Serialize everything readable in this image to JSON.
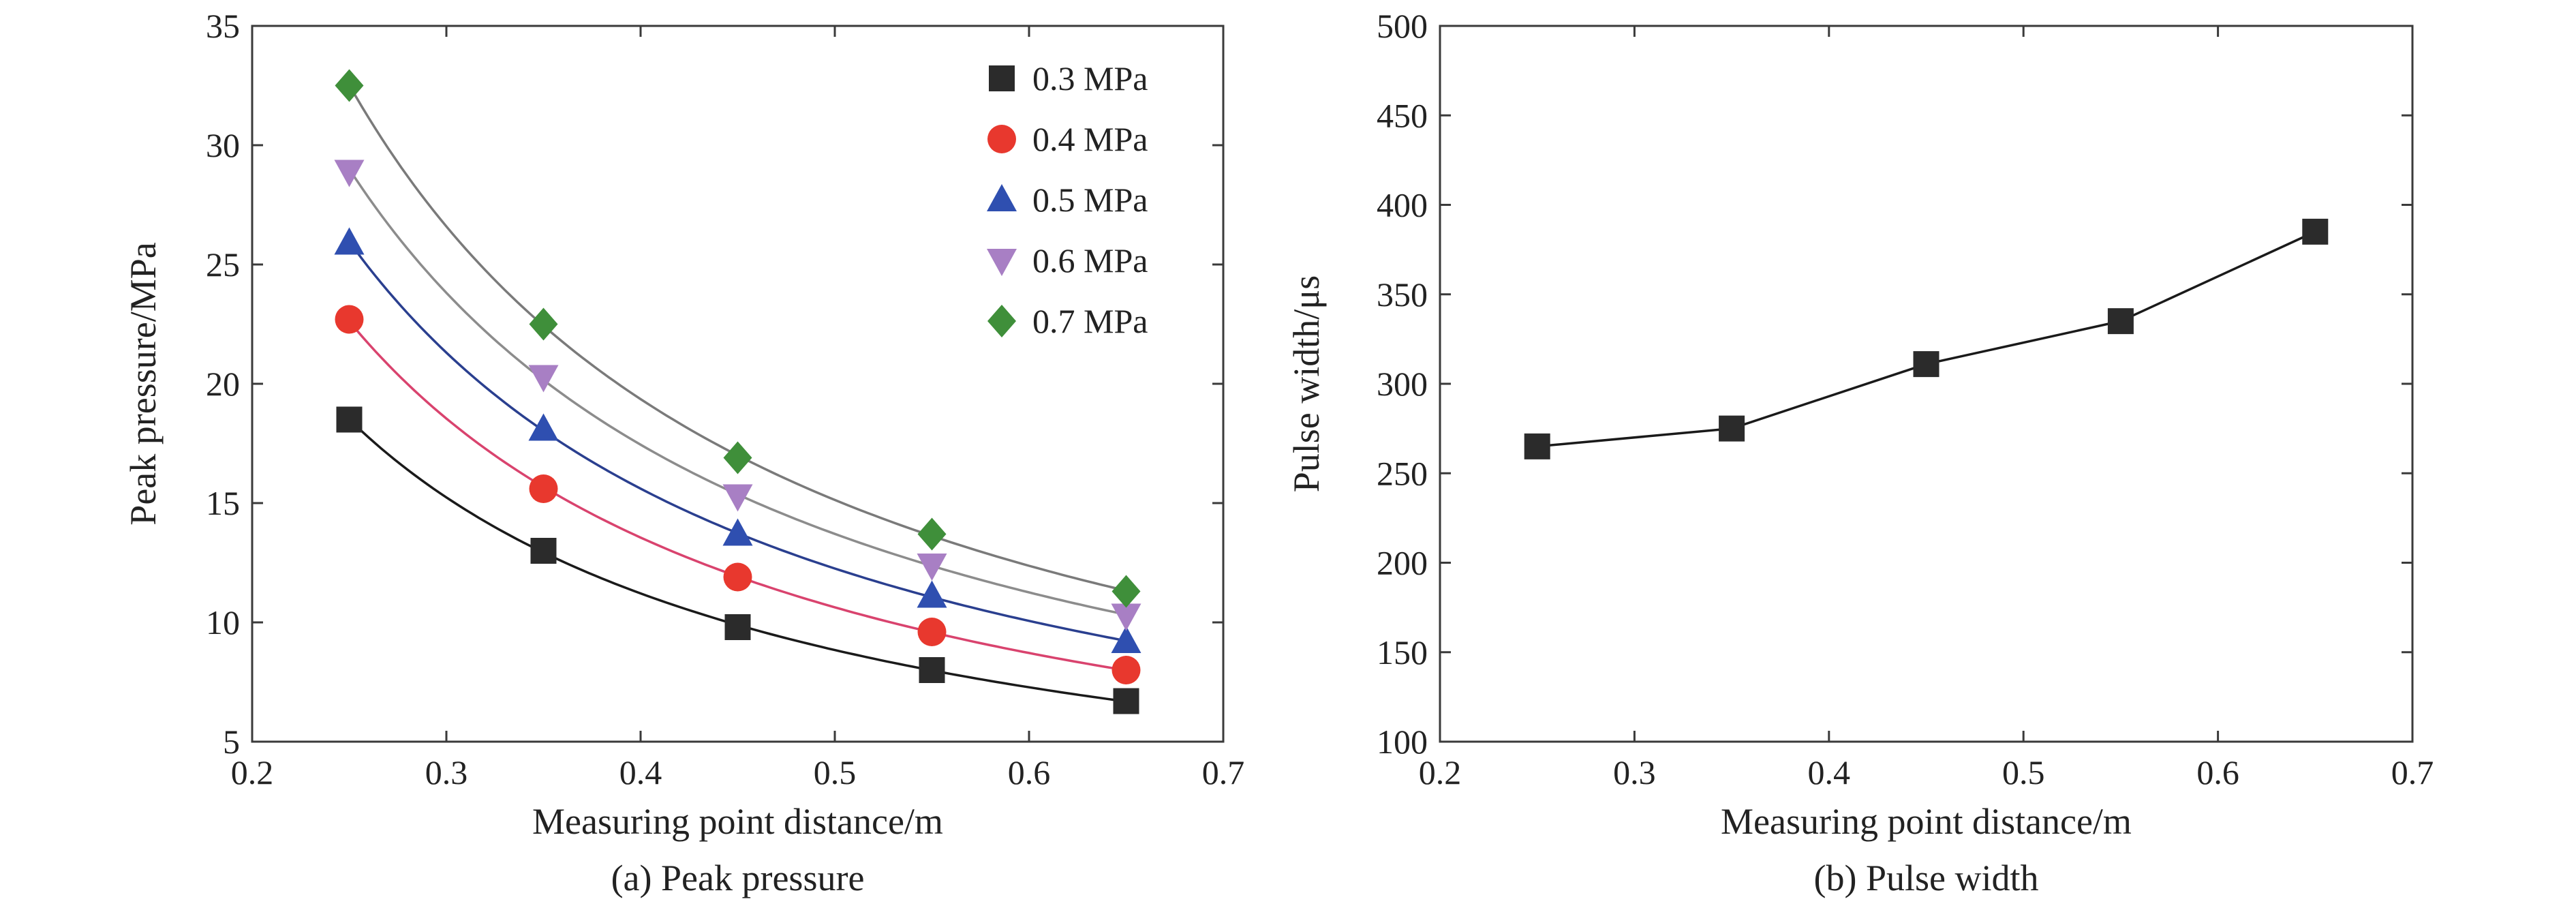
{
  "chart_data": [
    {
      "type": "scatter",
      "caption": "(a) Peak pressure",
      "xlabel": "Measuring point distance/m",
      "ylabel": "Peak pressure/MPa",
      "xlim": [
        0.2,
        0.7
      ],
      "ylim": [
        5,
        35
      ],
      "xticks": [
        "0.2",
        "0.3",
        "0.4",
        "0.5",
        "0.6",
        "0.7"
      ],
      "yticks": [
        "5",
        "10",
        "15",
        "20",
        "25",
        "30",
        "35"
      ],
      "grid": false,
      "legend_position": "top-right",
      "x": [
        0.25,
        0.35,
        0.45,
        0.55,
        0.65
      ],
      "series": [
        {
          "name": "0.3 MPa",
          "values": [
            18.5,
            13.0,
            9.8,
            8.0,
            6.7
          ],
          "color": "#2b2b2b",
          "line_color": "#1a1a1a",
          "marker": "square"
        },
        {
          "name": "0.4 MPa",
          "values": [
            22.7,
            15.6,
            11.9,
            9.6,
            8.0
          ],
          "color": "#e8382e",
          "line_color": "#d9436e",
          "marker": "circle"
        },
        {
          "name": "0.5 MPa",
          "values": [
            25.9,
            18.1,
            13.7,
            11.1,
            9.2
          ],
          "color": "#2f4fb0",
          "line_color": "#2a3f8f",
          "marker": "triangle-up"
        },
        {
          "name": "0.6 MPa",
          "values": [
            28.9,
            20.3,
            15.3,
            12.4,
            10.3
          ],
          "color": "#a87fc4",
          "line_color": "#8c8c8c",
          "marker": "triangle-down"
        },
        {
          "name": "0.7 MPa",
          "values": [
            32.5,
            22.5,
            16.9,
            13.7,
            11.3
          ],
          "color": "#3f8f3a",
          "line_color": "#7a7a7a",
          "marker": "diamond"
        }
      ]
    },
    {
      "type": "line",
      "caption": "(b) Pulse width",
      "xlabel": "Measuring point distance/m",
      "ylabel": "Pulse width/μs",
      "xlim": [
        0.2,
        0.7
      ],
      "ylim": [
        100,
        500
      ],
      "xticks": [
        "0.2",
        "0.3",
        "0.4",
        "0.5",
        "0.6",
        "0.7"
      ],
      "yticks": [
        "100",
        "150",
        "200",
        "250",
        "300",
        "350",
        "400",
        "450",
        "500"
      ],
      "grid": false,
      "x": [
        0.25,
        0.35,
        0.45,
        0.55,
        0.65
      ],
      "series": [
        {
          "values": [
            265,
            275,
            311,
            335,
            385
          ],
          "color": "#2b2b2b",
          "marker": "square"
        }
      ]
    }
  ]
}
